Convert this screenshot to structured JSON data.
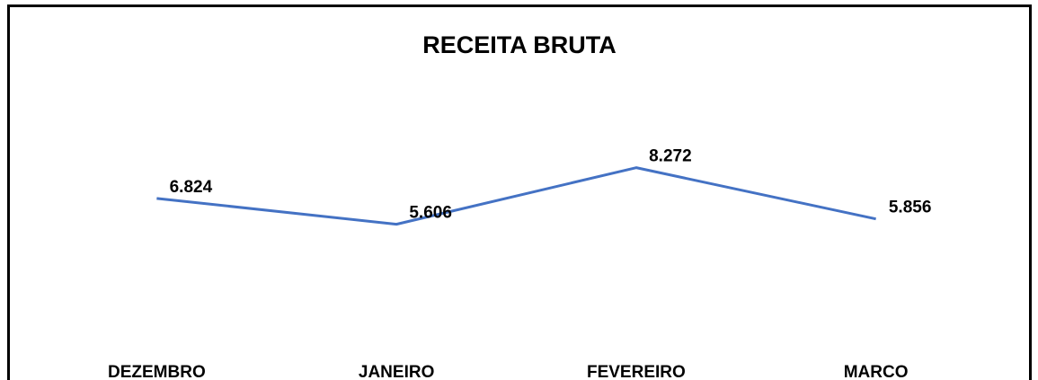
{
  "chart_data": {
    "type": "line",
    "title": "RECEITA BRUTA",
    "categories": [
      "DEZEMBRO",
      "JANEIRO",
      "FEVEREIRO",
      "MARCO"
    ],
    "series": [
      {
        "color": "#4472c4",
        "values": [
          6.824,
          5.606,
          8.272,
          5.856
        ]
      }
    ],
    "ylim": [
      0,
      13
    ]
  }
}
